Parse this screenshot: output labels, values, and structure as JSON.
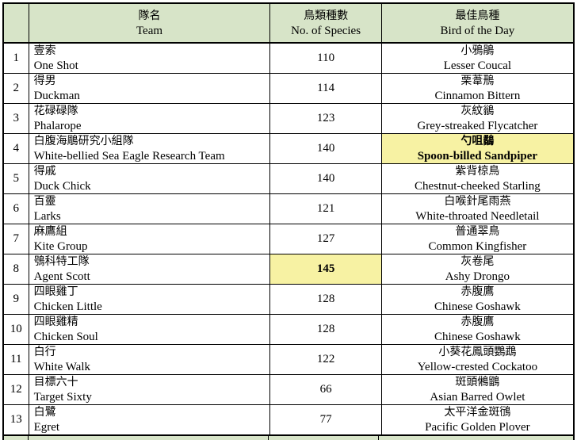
{
  "colors": {
    "header_bg": "#d7e4c8",
    "highlight_bg": "#f7f2a3",
    "border": "#000000"
  },
  "table": {
    "headers": {
      "rank": "",
      "team_zh": "隊名",
      "team_en": "Team",
      "species_zh": "鳥類種數",
      "species_en": "No. of Species",
      "bird_zh": "最佳鳥種",
      "bird_en": "Bird of the Day"
    },
    "rows": [
      {
        "rank": "1",
        "team_zh": "壹索",
        "team_en": "One Shot",
        "species": "110",
        "species_highlight": false,
        "bird_zh": "小鴉鵑",
        "bird_en": "Lesser Coucal",
        "bird_highlight": false
      },
      {
        "rank": "2",
        "team_zh": "得男",
        "team_en": "Duckman",
        "species": "114",
        "species_highlight": false,
        "bird_zh": "栗葦鳽",
        "bird_en": "Cinnamon Bittern",
        "bird_highlight": false
      },
      {
        "rank": "3",
        "team_zh": "花碌碌隊",
        "team_en": "Phalarope",
        "species": "123",
        "species_highlight": false,
        "bird_zh": "灰紋鶲",
        "bird_en": "Grey-streaked Flycatcher",
        "bird_highlight": false
      },
      {
        "rank": "4",
        "team_zh": "白腹海鵰研究小組隊",
        "team_en": "White-bellied Sea Eagle Research Team",
        "species": "140",
        "species_highlight": false,
        "bird_zh": "勺咀鷸",
        "bird_en": "Spoon-billed Sandpiper",
        "bird_highlight": true
      },
      {
        "rank": "5",
        "team_zh": "得戚",
        "team_en": "Duck Chick",
        "species": "140",
        "species_highlight": false,
        "bird_zh": "紫背椋鳥",
        "bird_en": "Chestnut-cheeked Starling",
        "bird_highlight": false
      },
      {
        "rank": "6",
        "team_zh": "百靈",
        "team_en": "Larks",
        "species": "121",
        "species_highlight": false,
        "bird_zh": "白喉針尾雨燕",
        "bird_en": "White-throated Needletail",
        "bird_highlight": false
      },
      {
        "rank": "7",
        "team_zh": "麻鷹組",
        "team_en": "Kite Group",
        "species": "127",
        "species_highlight": false,
        "bird_zh": "普通翠鳥",
        "bird_en": "Common Kingfisher",
        "bird_highlight": false
      },
      {
        "rank": "8",
        "team_zh": "鴞科特工隊",
        "team_en": "Agent Scott",
        "species": "145",
        "species_highlight": true,
        "bird_zh": "灰卷尾",
        "bird_en": "Ashy Drongo",
        "bird_highlight": false
      },
      {
        "rank": "9",
        "team_zh": "四眼雞丁",
        "team_en": "Chicken Little",
        "species": "128",
        "species_highlight": false,
        "bird_zh": "赤腹鷹",
        "bird_en": "Chinese Goshawk",
        "bird_highlight": false
      },
      {
        "rank": "10",
        "team_zh": "四眼雞精",
        "team_en": "Chicken Soul",
        "species": "128",
        "species_highlight": false,
        "bird_zh": "赤腹鷹",
        "bird_en": "Chinese Goshawk",
        "bird_highlight": false
      },
      {
        "rank": "11",
        "team_zh": "白行",
        "team_en": "White Walk",
        "species": "122",
        "species_highlight": false,
        "bird_zh": "小葵花鳳頭鸚鵡",
        "bird_en": "Yellow-crested Cockatoo",
        "bird_highlight": false
      },
      {
        "rank": "12",
        "team_zh": "目標六十",
        "team_en": "Target Sixty",
        "species": "66",
        "species_highlight": false,
        "bird_zh": "斑頭鵂鶹",
        "bird_en": "Asian Barred Owlet",
        "bird_highlight": false
      },
      {
        "rank": "13",
        "team_zh": "白鷺",
        "team_en": "Egret",
        "species": "77",
        "species_highlight": false,
        "bird_zh": "太平洋金斑鴴",
        "bird_en": "Pacific Golden Plover",
        "bird_highlight": false
      }
    ]
  }
}
